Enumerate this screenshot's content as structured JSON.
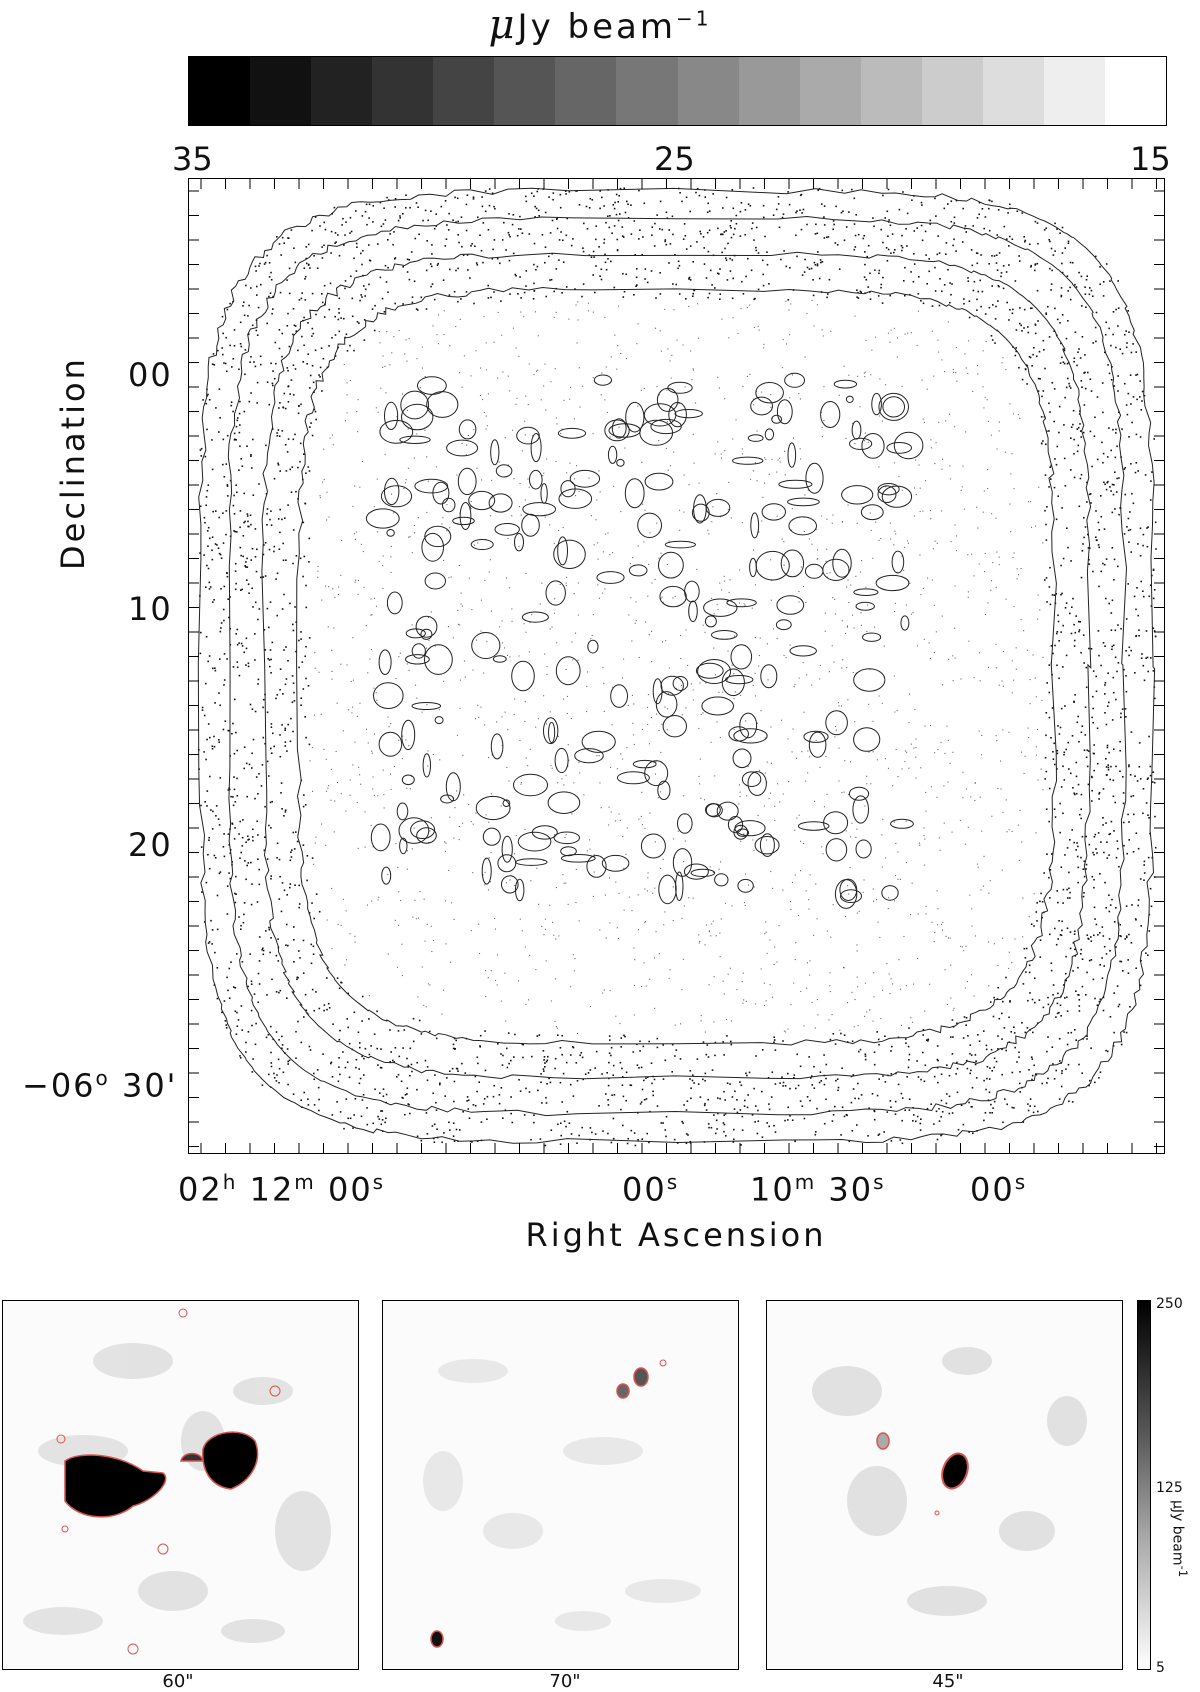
{
  "colorbar": {
    "unit_mu": "μ",
    "unit_main": "Jy beam",
    "unit_exp": "−1",
    "ticks": [
      "35",
      "25",
      "15"
    ],
    "levels": 16,
    "dark": "#000000",
    "light": "#ffffff"
  },
  "main_map": {
    "y_axis_label": "Declination",
    "x_axis_label": "Right Ascension",
    "dec_ticks": [
      "00",
      "10",
      "20"
    ],
    "dec_last_prefix": "−06",
    "dec_last_deg": "o",
    "dec_last_min": "30'",
    "ra_ticks": [
      {
        "h": "02",
        "hs": "h",
        "m": "12",
        "ms": "m",
        "s": "00",
        "ss": "s"
      },
      {
        "s": "00",
        "ss": "s"
      },
      {
        "m": "10",
        "ms": "m",
        "s": "30",
        "ss": "s"
      },
      {
        "s": "00",
        "ss": "s"
      }
    ],
    "contour_color": "#222222"
  },
  "insets": {
    "panels": [
      {
        "caption": "60\""
      },
      {
        "caption": "70\""
      },
      {
        "caption": "45\""
      }
    ],
    "scale": {
      "max": "250",
      "mid": "125",
      "min": "5",
      "unit": "μJy beam",
      "unit_exp": "-1"
    },
    "contour_color": "#d9534f"
  }
}
